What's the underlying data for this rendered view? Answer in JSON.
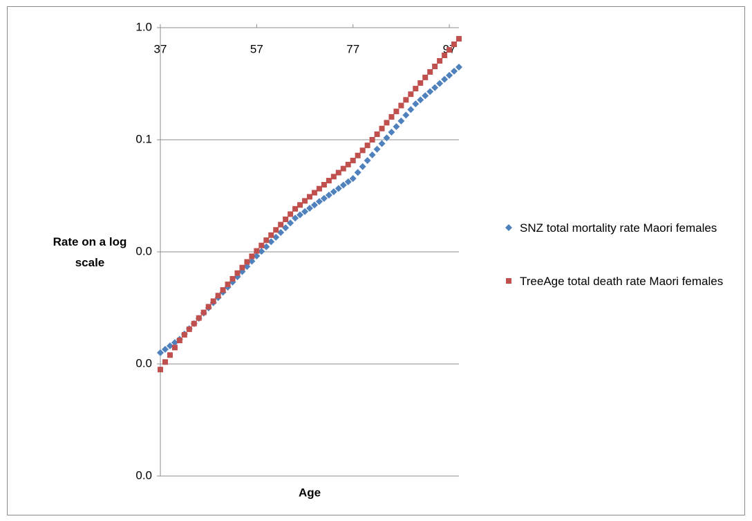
{
  "chart_data": {
    "type": "scatter",
    "x_label": "Age",
    "y_label": "Rate on a log scale",
    "x": [
      37,
      38,
      39,
      40,
      41,
      42,
      43,
      44,
      45,
      46,
      47,
      48,
      49,
      50,
      51,
      52,
      53,
      54,
      55,
      56,
      57,
      58,
      59,
      60,
      61,
      62,
      63,
      64,
      65,
      66,
      67,
      68,
      69,
      70,
      71,
      72,
      73,
      74,
      75,
      76,
      77,
      78,
      79,
      80,
      81,
      82,
      83,
      84,
      85,
      86,
      87,
      88,
      89,
      90,
      91,
      92,
      93,
      94,
      95,
      96,
      97,
      98,
      99
    ],
    "series": [
      {
        "name": "SNZ total mortality rate Maori females",
        "color": "#4f81bd",
        "marker": "diamond",
        "values": [
          0.00126,
          0.00135,
          0.00145,
          0.00155,
          0.00166,
          0.00185,
          0.00206,
          0.00229,
          0.00255,
          0.00284,
          0.00316,
          0.00352,
          0.00391,
          0.00436,
          0.00484,
          0.00538,
          0.006,
          0.00667,
          0.00741,
          0.00826,
          0.00918,
          0.0101,
          0.0111,
          0.0123,
          0.0135,
          0.0149,
          0.0164,
          0.0181,
          0.02,
          0.0214,
          0.0229,
          0.0245,
          0.0262,
          0.0281,
          0.03,
          0.0321,
          0.0344,
          0.0368,
          0.0394,
          0.0422,
          0.0451,
          0.0511,
          0.0577,
          0.0653,
          0.0733,
          0.0824,
          0.0925,
          0.104,
          0.117,
          0.131,
          0.147,
          0.166,
          0.186,
          0.209,
          0.227,
          0.247,
          0.269,
          0.292,
          0.318,
          0.346,
          0.376,
          0.409,
          0.445
        ]
      },
      {
        "name": "TreeAge total  death rate Maori females",
        "color": "#c0504d",
        "marker": "square",
        "values": [
          0.000891,
          0.00104,
          0.0012,
          0.0014,
          0.00162,
          0.00182,
          0.00204,
          0.00229,
          0.00257,
          0.00288,
          0.00324,
          0.00363,
          0.00407,
          0.00457,
          0.00513,
          0.00575,
          0.00646,
          0.00724,
          0.00813,
          0.00912,
          0.0102,
          0.0114,
          0.0127,
          0.0141,
          0.0157,
          0.0175,
          0.0195,
          0.0217,
          0.0242,
          0.0262,
          0.0285,
          0.031,
          0.0337,
          0.0366,
          0.0397,
          0.0432,
          0.0469,
          0.0509,
          0.0553,
          0.0601,
          0.0653,
          0.0724,
          0.0804,
          0.0891,
          0.1,
          0.112,
          0.126,
          0.142,
          0.16,
          0.179,
          0.202,
          0.227,
          0.255,
          0.286,
          0.321,
          0.36,
          0.403,
          0.451,
          0.506,
          0.566,
          0.634,
          0.711,
          0.796
        ]
      }
    ],
    "xlim": [
      37,
      99
    ],
    "xticks": [
      37,
      57,
      77,
      97
    ],
    "ylim": [
      0.0001,
      1
    ],
    "ylog": true,
    "yticks": [
      {
        "value": 1,
        "label": "1.0"
      },
      0.1,
      {
        "value": 0.01,
        "label": "0.0"
      },
      {
        "value": 0.001,
        "label": "0.0"
      },
      {
        "value": 0.0001,
        "label": "0.0"
      }
    ],
    "grid": true,
    "legend": "right"
  }
}
